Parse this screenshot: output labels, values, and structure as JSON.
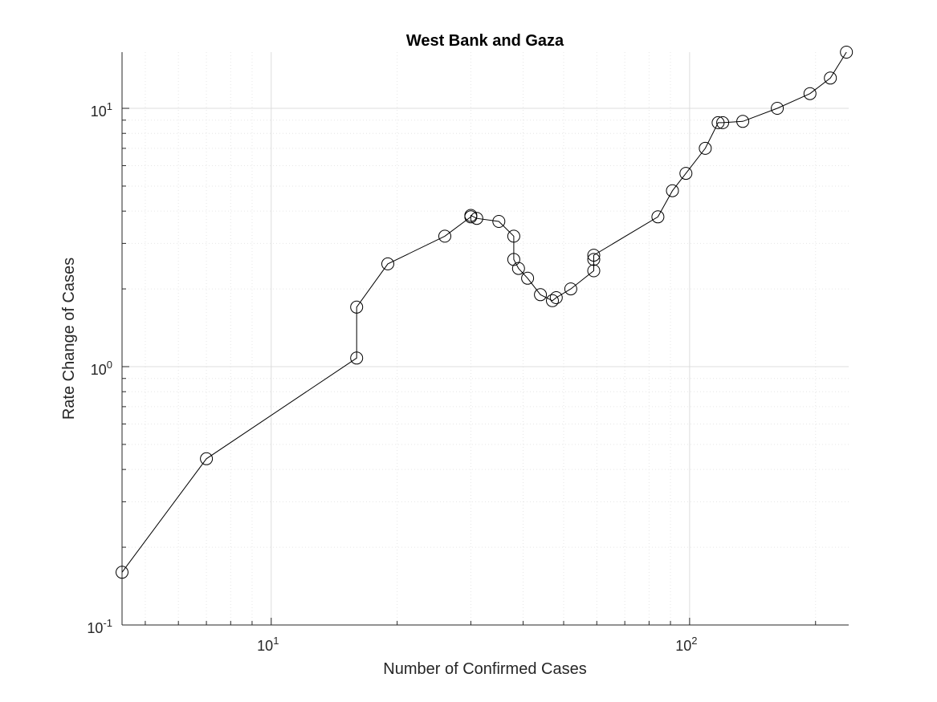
{
  "chart_data": {
    "type": "scatter",
    "title": "West Bank and Gaza",
    "xlabel": "Number of Confirmed Cases",
    "ylabel": "Rate Change of Cases",
    "xscale": "log",
    "yscale": "log",
    "xlim": [
      4.4,
      240
    ],
    "ylim": [
      0.1,
      16.5
    ],
    "grid": true,
    "marker": "circle",
    "line_color": "#000000",
    "marker_color": "#000000",
    "x_ticks": [
      {
        "base": "10",
        "exp": "1",
        "value": 10
      },
      {
        "base": "10",
        "exp": "2",
        "value": 100
      }
    ],
    "y_ticks": [
      {
        "base": "10",
        "exp": "-1",
        "value": 0.1
      },
      {
        "base": "10",
        "exp": "0",
        "value": 1
      },
      {
        "base": "10",
        "exp": "1",
        "value": 10
      }
    ],
    "series": [
      {
        "x": [
          4.4,
          7,
          16,
          16,
          19,
          26,
          30,
          30,
          31,
          35,
          38,
          38,
          39,
          41,
          44,
          47,
          48,
          52,
          59,
          59,
          59,
          84,
          91,
          98,
          109,
          117,
          120,
          134,
          162,
          194,
          217,
          237
        ],
        "y": [
          0.16,
          0.44,
          1.08,
          1.7,
          2.5,
          3.2,
          3.8,
          3.85,
          3.75,
          3.65,
          3.2,
          2.6,
          2.4,
          2.2,
          1.9,
          1.8,
          1.85,
          2.0,
          2.35,
          2.6,
          2.7,
          3.8,
          4.8,
          5.6,
          7.0,
          8.8,
          8.8,
          8.9,
          10.0,
          11.4,
          13.1,
          16.5
        ]
      }
    ]
  }
}
